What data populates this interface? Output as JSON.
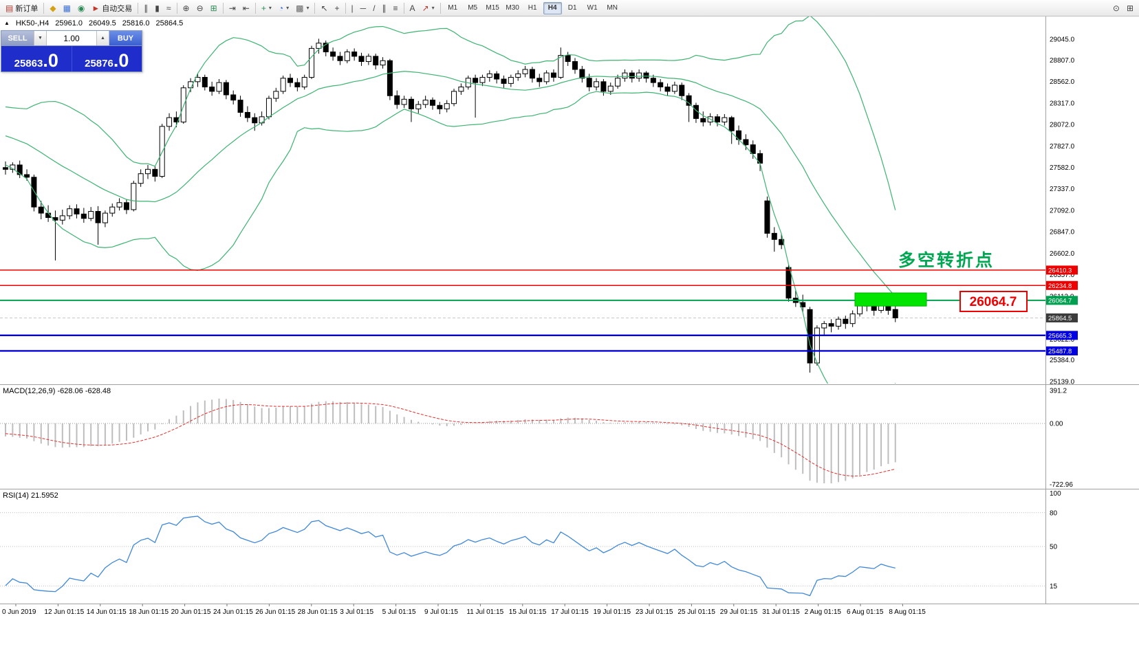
{
  "toolbar": {
    "dropdown_glyph": "▾",
    "items": [
      {
        "name": "new-order",
        "glyph": "▤",
        "color": "#b03a2e",
        "label": "新订单"
      },
      {
        "sep": true
      },
      {
        "name": "market-watch",
        "glyph": "◆",
        "color": "#d4a017"
      },
      {
        "name": "data-window",
        "glyph": "▦",
        "color": "#3b6fd4"
      },
      {
        "name": "navigator",
        "glyph": "◉",
        "color": "#2e8b57"
      },
      {
        "name": "auto-trading",
        "glyph": "►",
        "color": "#c0392b",
        "label": "自动交易"
      },
      {
        "sep": true
      },
      {
        "name": "bar-chart-mode",
        "glyph": "∥",
        "color": "#444"
      },
      {
        "name": "candlestick-mode",
        "glyph": "▮",
        "color": "#444"
      },
      {
        "name": "line-chart-mode",
        "glyph": "≈",
        "color": "#444"
      },
      {
        "sep": true
      },
      {
        "name": "zoom-in",
        "glyph": "⊕",
        "color": "#444"
      },
      {
        "name": "zoom-out",
        "glyph": "⊖",
        "color": "#444"
      },
      {
        "name": "tile-windows",
        "glyph": "⊞",
        "color": "#2e8b57"
      },
      {
        "sep": true
      },
      {
        "name": "auto-scroll",
        "glyph": "⇥",
        "color": "#444"
      },
      {
        "name": "chart-shift",
        "glyph": "⇤",
        "color": "#444"
      },
      {
        "sep": true
      },
      {
        "name": "indicators",
        "glyph": "+",
        "color": "#2e8b57",
        "dropdown": true
      },
      {
        "name": "periods",
        "glyph": "◔",
        "color": "#3b6fd4",
        "dropdown": true
      },
      {
        "name": "templates",
        "glyph": "▩",
        "color": "#666",
        "dropdown": true
      },
      {
        "sep": true
      },
      {
        "name": "cursor-tool",
        "glyph": "↖",
        "color": "#444"
      },
      {
        "name": "crosshair-tool",
        "glyph": "+",
        "color": "#444"
      },
      {
        "sep": true
      },
      {
        "name": "vertical-line-tool",
        "glyph": "|",
        "color": "#444"
      },
      {
        "name": "horizontal-line-tool",
        "glyph": "─",
        "color": "#444"
      },
      {
        "name": "trendline-tool",
        "glyph": "/",
        "color": "#444"
      },
      {
        "name": "channel-tool",
        "glyph": "∥",
        "color": "#444"
      },
      {
        "name": "fibonacci-tool",
        "glyph": "≡",
        "color": "#444"
      },
      {
        "sep": true
      },
      {
        "name": "text-tool",
        "glyph": "A",
        "color": "#444"
      },
      {
        "name": "arrows-tool",
        "glyph": "↗",
        "color": "#b03a2e",
        "dropdown": true
      },
      {
        "sep": true
      }
    ],
    "timeframes": [
      "M1",
      "M5",
      "M15",
      "M30",
      "H1",
      "H4",
      "D1",
      "W1",
      "MN"
    ],
    "active_timeframe": "H4",
    "right_items": [
      {
        "name": "symbol-search",
        "glyph": "⊙",
        "color": "#444"
      },
      {
        "name": "open-chart",
        "glyph": "⊞",
        "color": "#444"
      }
    ]
  },
  "order_panel": {
    "sell_label": "SELL",
    "buy_label": "BUY",
    "volume": "1.00",
    "volume_down_glyph": "▼",
    "volume_up_glyph": "▲",
    "sell_price": {
      "main": "25863",
      "pips": ".0"
    },
    "buy_price": {
      "main": "25876",
      "pips": ".0"
    }
  },
  "icons": {
    "symbol_marker": "▲"
  },
  "chart_data": {
    "type": "candlestick",
    "symbol": "HK50-",
    "period": "H4",
    "title": "HK50-,H4",
    "ohlc_display": {
      "open": "25961.0",
      "high": "26049.5",
      "low": "25816.0",
      "close": "25864.5"
    },
    "ylim": [
      25115,
      29304
    ],
    "y_ticks": [
      "29045.0",
      "28807.0",
      "28562.0",
      "28317.0",
      "28072.0",
      "27827.0",
      "27582.0",
      "27337.0",
      "27092.0",
      "26847.0",
      "26602.0",
      "26357.0",
      "26112.0",
      "25622.0",
      "25384.0",
      "25139.0"
    ],
    "x_labels": [
      "0 Jun 2019",
      "12 Jun 01:15",
      "14 Jun 01:15",
      "18 Jun 01:15",
      "20 Jun 01:15",
      "24 Jun 01:15",
      "26 Jun 01:15",
      "28 Jun 01:15",
      "3 Jul 01:15",
      "5 Jul 01:15",
      "9 Jul 01:15",
      "11 Jul 01:15",
      "15 Jul 01:15",
      "17 Jul 01:15",
      "19 Jul 01:15",
      "23 Jul 01:15",
      "25 Jul 01:15",
      "29 Jul 01:15",
      "31 Jul 01:15",
      "2 Aug 01:15",
      "6 Aug 01:15",
      "8 Aug 01:15"
    ],
    "candles": [
      [
        27580,
        27650,
        27500,
        27560
      ],
      [
        27560,
        27640,
        27520,
        27610
      ],
      [
        27610,
        27660,
        27460,
        27500
      ],
      [
        27500,
        27560,
        27430,
        27470
      ],
      [
        27470,
        27500,
        27080,
        27130
      ],
      [
        27130,
        27200,
        26990,
        27060
      ],
      [
        27060,
        27150,
        26960,
        27010
      ],
      [
        27010,
        27090,
        26520,
        26980
      ],
      [
        26980,
        27100,
        26930,
        27030
      ],
      [
        27030,
        27150,
        26990,
        27110
      ],
      [
        27110,
        27160,
        27000,
        27050
      ],
      [
        27050,
        27120,
        26950,
        27000
      ],
      [
        27000,
        27130,
        26970,
        27080
      ],
      [
        27080,
        27140,
        26700,
        26950
      ],
      [
        26950,
        27090,
        26900,
        27060
      ],
      [
        27060,
        27170,
        27020,
        27130
      ],
      [
        27130,
        27230,
        27090,
        27180
      ],
      [
        27180,
        27220,
        27050,
        27100
      ],
      [
        27100,
        27430,
        27080,
        27400
      ],
      [
        27400,
        27560,
        27360,
        27510
      ],
      [
        27510,
        27610,
        27450,
        27560
      ],
      [
        27560,
        27600,
        27420,
        27480
      ],
      [
        27480,
        28080,
        27460,
        28050
      ],
      [
        28050,
        28200,
        28000,
        28150
      ],
      [
        28150,
        28220,
        28040,
        28100
      ],
      [
        28100,
        28520,
        28080,
        28490
      ],
      [
        28490,
        28600,
        28440,
        28560
      ],
      [
        28560,
        28650,
        28500,
        28610
      ],
      [
        28610,
        28640,
        28460,
        28500
      ],
      [
        28500,
        28560,
        28400,
        28450
      ],
      [
        28450,
        28590,
        28420,
        28550
      ],
      [
        28550,
        28580,
        28360,
        28410
      ],
      [
        28410,
        28460,
        28300,
        28350
      ],
      [
        28350,
        28400,
        28160,
        28210
      ],
      [
        28210,
        28280,
        28100,
        28150
      ],
      [
        28150,
        28200,
        28000,
        28090
      ],
      [
        28090,
        28220,
        28060,
        28160
      ],
      [
        28160,
        28400,
        28130,
        28370
      ],
      [
        28370,
        28490,
        28330,
        28450
      ],
      [
        28450,
        28630,
        28420,
        28600
      ],
      [
        28600,
        28650,
        28500,
        28550
      ],
      [
        28550,
        28600,
        28450,
        28500
      ],
      [
        28500,
        28640,
        28470,
        28610
      ],
      [
        28610,
        28970,
        28590,
        28940
      ],
      [
        28940,
        29050,
        28880,
        29000
      ],
      [
        29000,
        29030,
        28850,
        28900
      ],
      [
        28900,
        28950,
        28800,
        28850
      ],
      [
        28850,
        28900,
        28750,
        28800
      ],
      [
        28800,
        28930,
        28770,
        28900
      ],
      [
        28900,
        28940,
        28800,
        28850
      ],
      [
        28850,
        28890,
        28740,
        28790
      ],
      [
        28790,
        28880,
        28750,
        28850
      ],
      [
        28850,
        28880,
        28700,
        28750
      ],
      [
        28750,
        28840,
        28710,
        28800
      ],
      [
        28800,
        28820,
        28350,
        28400
      ],
      [
        28400,
        28460,
        28250,
        28300
      ],
      [
        28300,
        28400,
        28260,
        28360
      ],
      [
        28360,
        28390,
        28100,
        28250
      ],
      [
        28250,
        28340,
        28200,
        28300
      ],
      [
        28300,
        28400,
        28260,
        28350
      ],
      [
        28350,
        28380,
        28240,
        28290
      ],
      [
        28290,
        28330,
        28190,
        28250
      ],
      [
        28250,
        28350,
        28210,
        28310
      ],
      [
        28310,
        28480,
        28280,
        28450
      ],
      [
        28450,
        28540,
        28410,
        28500
      ],
      [
        28500,
        28630,
        28470,
        28600
      ],
      [
        28600,
        28640,
        28150,
        28550
      ],
      [
        28550,
        28640,
        28510,
        28610
      ],
      [
        28610,
        28690,
        28560,
        28650
      ],
      [
        28650,
        28680,
        28540,
        28590
      ],
      [
        28590,
        28630,
        28490,
        28540
      ],
      [
        28540,
        28640,
        28500,
        28610
      ],
      [
        28610,
        28690,
        28570,
        28650
      ],
      [
        28650,
        28740,
        28610,
        28700
      ],
      [
        28700,
        28730,
        28550,
        28600
      ],
      [
        28600,
        28650,
        28500,
        28560
      ],
      [
        28560,
        28690,
        28530,
        28660
      ],
      [
        28660,
        28700,
        28560,
        28610
      ],
      [
        28610,
        28950,
        28590,
        28860
      ],
      [
        28860,
        28900,
        28740,
        28790
      ],
      [
        28790,
        28830,
        28650,
        28700
      ],
      [
        28700,
        28740,
        28550,
        28600
      ],
      [
        28600,
        28650,
        28450,
        28500
      ],
      [
        28500,
        28600,
        28460,
        28560
      ],
      [
        28560,
        28590,
        28400,
        28450
      ],
      [
        28450,
        28550,
        28410,
        28510
      ],
      [
        28510,
        28640,
        28480,
        28600
      ],
      [
        28600,
        28700,
        28560,
        28660
      ],
      [
        28660,
        28690,
        28550,
        28600
      ],
      [
        28600,
        28700,
        28560,
        28660
      ],
      [
        28660,
        28680,
        28550,
        28600
      ],
      [
        28600,
        28640,
        28500,
        28550
      ],
      [
        28550,
        28590,
        28450,
        28500
      ],
      [
        28500,
        28540,
        28400,
        28450
      ],
      [
        28450,
        28560,
        28420,
        28520
      ],
      [
        28520,
        28550,
        28350,
        28400
      ],
      [
        28400,
        28430,
        28100,
        28290
      ],
      [
        28290,
        28320,
        28090,
        28140
      ],
      [
        28140,
        28220,
        28050,
        28100
      ],
      [
        28100,
        28200,
        28060,
        28160
      ],
      [
        28160,
        28190,
        28050,
        28100
      ],
      [
        28100,
        28190,
        28060,
        28150
      ],
      [
        28150,
        28170,
        27850,
        28000
      ],
      [
        28000,
        28060,
        27840,
        27900
      ],
      [
        27900,
        27960,
        27780,
        27840
      ],
      [
        27840,
        27890,
        27680,
        27740
      ],
      [
        27740,
        27780,
        27540,
        27630
      ],
      [
        27200,
        27250,
        26780,
        26830
      ],
      [
        26830,
        26900,
        26620,
        26760
      ],
      [
        26760,
        26820,
        26650,
        26700
      ],
      [
        26440,
        26470,
        26050,
        26090
      ],
      [
        26090,
        26180,
        25990,
        26040
      ],
      [
        26040,
        26130,
        25930,
        25990
      ],
      [
        25960,
        25990,
        25240,
        25350
      ],
      [
        25350,
        25780,
        25320,
        25750
      ],
      [
        25750,
        25830,
        25660,
        25800
      ],
      [
        25800,
        25850,
        25700,
        25770
      ],
      [
        25770,
        25880,
        25730,
        25850
      ],
      [
        25850,
        25890,
        25740,
        25800
      ],
      [
        25800,
        25950,
        25760,
        25910
      ],
      [
        25910,
        26150,
        25880,
        26050
      ],
      [
        26050,
        26100,
        25940,
        26000
      ],
      [
        26000,
        26050,
        25890,
        25950
      ],
      [
        25950,
        26130,
        25920,
        26060
      ],
      [
        26060,
        26090,
        25900,
        25950
      ],
      [
        25961,
        26049.5,
        25816,
        25864.5
      ]
    ],
    "warmup_closes_for_indicators": [
      28400,
      28340,
      28360,
      28300,
      28320,
      28260,
      28280,
      28220,
      28240,
      28180,
      28200,
      28140,
      28160,
      28100,
      28120,
      28060,
      28080,
      28020,
      28040,
      27980,
      28000,
      27940,
      27960,
      27900,
      27920,
      27860,
      27880,
      27820,
      27700,
      27600
    ],
    "indicators": {
      "bollinger": {
        "period": 20,
        "deviation": 2,
        "color": "#3cb371"
      },
      "macd": {
        "label": "MACD(12,26,9) -628.06 -628.48",
        "params": [
          12,
          26,
          9
        ],
        "values_display": [
          "-628.06",
          "-628.48"
        ],
        "scale_labels": [
          "391.2",
          "0.00",
          "-722.96"
        ],
        "ylim": [
          440,
          -750
        ],
        "histogram_color": "#bdbdbd",
        "signal_color": "#e23030"
      },
      "rsi": {
        "label": "RSI(14) 21.5952",
        "period": 14,
        "value_display": "21.5952",
        "levels": [
          80,
          50,
          15
        ],
        "scale_labels": [
          "100",
          "80",
          "50",
          "15"
        ],
        "color": "#3f87d9"
      }
    },
    "hlines": [
      {
        "price": 26410.3,
        "color": "#ee0000",
        "width": 1.4,
        "tag": "26410.3"
      },
      {
        "price": 26234.8,
        "color": "#ee0000",
        "width": 1.4,
        "tag": "26234.8"
      },
      {
        "price": 26064.7,
        "color": "#00a050",
        "width": 2,
        "tag": "26064.7"
      },
      {
        "price": 25665.3,
        "color": "#0000e0",
        "width": 2.4,
        "tag": "25665.3"
      },
      {
        "price": 25487.8,
        "color": "#0000e0",
        "width": 2.4,
        "tag": "25487.8"
      }
    ],
    "current_price": {
      "value": 25864.5,
      "tag": "25864.5",
      "tag_bg": "#3c3c3c"
    },
    "rectangle": {
      "price_top": 26150,
      "price_bottom": 26000,
      "x_start": 1243,
      "x_end": 1347,
      "fill": "#00e400",
      "stroke": "#00b000"
    },
    "annotations": {
      "turning_point": {
        "text": "多空转折点",
        "color": "#00a651"
      },
      "price_callout": {
        "text": "26064.7",
        "color": "#ee0000"
      }
    }
  }
}
